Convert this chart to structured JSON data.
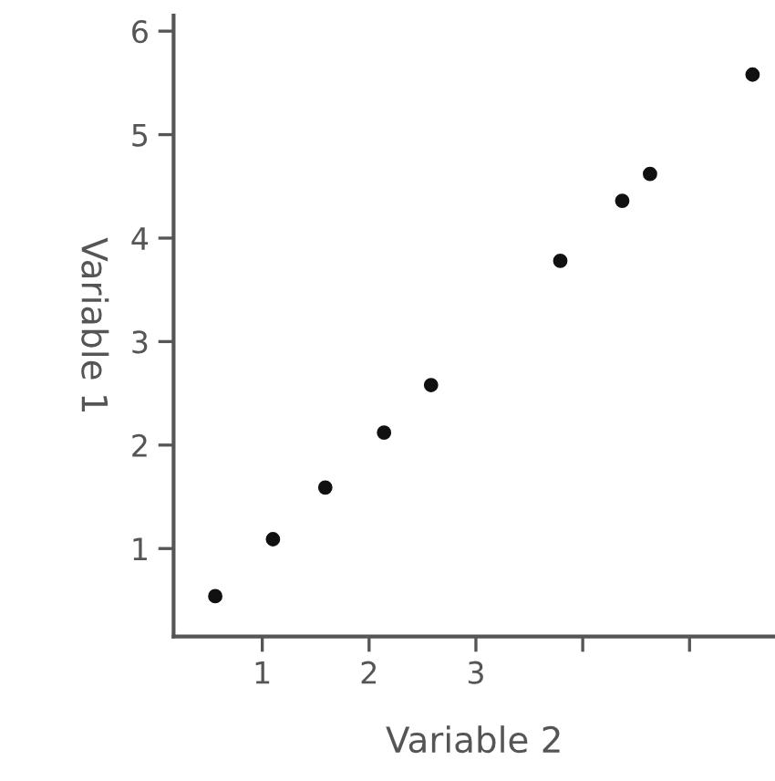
{
  "chart_data": {
    "type": "scatter",
    "xlabel": "Variable 2",
    "ylabel": "Variable 1",
    "x": [
      0.56,
      1.1,
      1.59,
      2.14,
      2.58,
      3.79,
      4.37,
      4.63,
      5.59
    ],
    "series": [
      {
        "color": "#111111",
        "values": [
          0.54,
          1.09,
          1.59,
          2.12,
          2.58,
          3.78,
          4.36,
          4.62,
          5.58
        ]
      }
    ],
    "xlim": [
      0.17,
      5.8
    ],
    "ylim": [
      0.15,
      6.15
    ],
    "xticks": [
      1,
      2,
      3,
      {
        "value": 4,
        "label": null
      },
      {
        "value": 5,
        "label": null
      }
    ],
    "yticks": [
      1,
      2,
      3,
      4,
      5,
      6
    ],
    "marker": "circle",
    "grid": false,
    "legend": false
  }
}
